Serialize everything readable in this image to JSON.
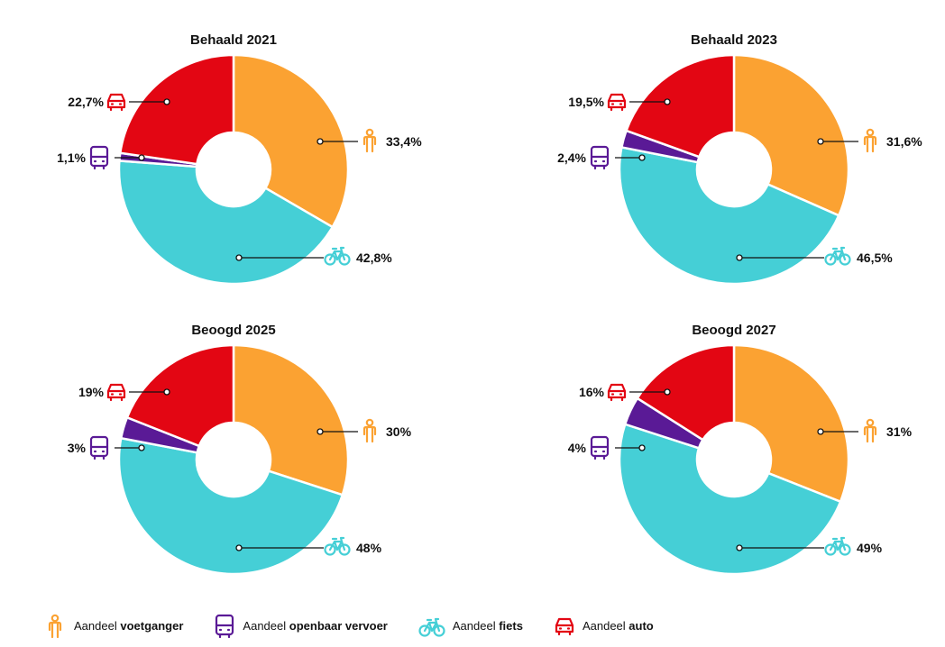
{
  "colors": {
    "voetganger": "#FBA232",
    "openbaar_vervoer": "#5A1A96",
    "fiets": "#45CFD6",
    "auto": "#E30613"
  },
  "legend": {
    "items": [
      {
        "key": "voetganger",
        "icon": "pedestrian-icon",
        "prefix": "Aandeel",
        "bold": "voetganger"
      },
      {
        "key": "openbaar_vervoer",
        "icon": "bus-icon",
        "prefix": "Aandeel",
        "bold": "openbaar vervoer"
      },
      {
        "key": "fiets",
        "icon": "bicycle-icon",
        "prefix": "Aandeel",
        "bold": "fiets"
      },
      {
        "key": "auto",
        "icon": "car-icon",
        "prefix": "Aandeel",
        "bold": "auto"
      }
    ]
  },
  "chart_data": [
    {
      "type": "pie",
      "title": "Behaald 2021",
      "categories": [
        "voetganger",
        "fiets",
        "openbaar vervoer",
        "auto"
      ],
      "values": [
        33.4,
        42.8,
        1.1,
        22.7
      ],
      "labels": [
        "33,4%",
        "42,8%",
        "1,1%",
        "22,7%"
      ]
    },
    {
      "type": "pie",
      "title": "Behaald 2023",
      "categories": [
        "voetganger",
        "fiets",
        "openbaar vervoer",
        "auto"
      ],
      "values": [
        31.6,
        46.5,
        2.4,
        19.5
      ],
      "labels": [
        "31,6%",
        "46,5%",
        "2,4%",
        "19,5%"
      ]
    },
    {
      "type": "pie",
      "title": "Beoogd 2025",
      "categories": [
        "voetganger",
        "fiets",
        "openbaar vervoer",
        "auto"
      ],
      "values": [
        30,
        48,
        3,
        19
      ],
      "labels": [
        "30%",
        "48%",
        "3%",
        "19%"
      ]
    },
    {
      "type": "pie",
      "title": "Beoogd 2027",
      "categories": [
        "voetganger",
        "fiets",
        "openbaar vervoer",
        "auto"
      ],
      "values": [
        31,
        49,
        4,
        16
      ],
      "labels": [
        "31%",
        "49%",
        "4%",
        "16%"
      ]
    }
  ]
}
